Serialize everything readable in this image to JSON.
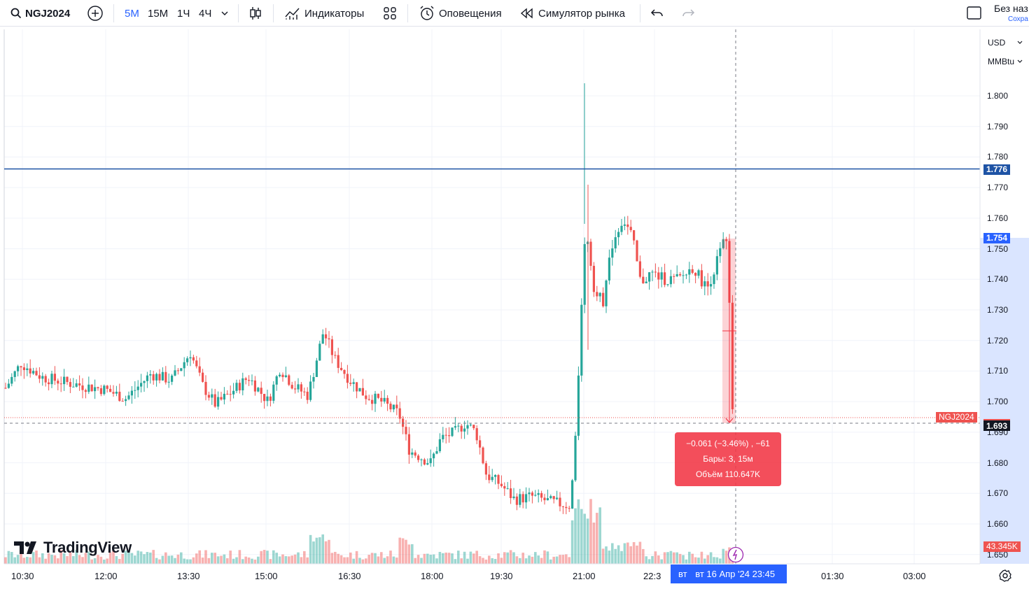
{
  "toolbar": {
    "symbol": "NGJ2024",
    "intervals": [
      {
        "label": "5М",
        "active": true
      },
      {
        "label": "15М",
        "active": false
      },
      {
        "label": "1Ч",
        "active": false
      },
      {
        "label": "4Ч",
        "active": false
      }
    ],
    "indicators_label": "Индикаторы",
    "alerts_label": "Оповещения",
    "replay_label": "Симулятор рынка",
    "layout_title": "Без наз",
    "layout_subtitle": "Сохра"
  },
  "price_scale": {
    "currency": "USD",
    "unit": "MMBtu",
    "labels": [
      "1.800",
      "1.790",
      "1.780",
      "1.770",
      "1.760",
      "1.750",
      "1.740",
      "1.730",
      "1.720",
      "1.710",
      "1.700",
      "1.690",
      "1.680",
      "1.670",
      "1.660",
      "1.650"
    ]
  },
  "time_scale": {
    "labels": [
      "10:30",
      "12:00",
      "13:30",
      "15:00",
      "16:30",
      "18:00",
      "19:30",
      "21:00",
      "22:3",
      "01:30",
      "03:00"
    ],
    "crosshair_prefix": "вт",
    "crosshair_label": "вт 16 Апр '24   23:45"
  },
  "tags": {
    "horizontal_line": "1.776",
    "range_top": "1.754",
    "symbol_name": "NGJ2024",
    "last_price": "1.693",
    "volume": "43.345K"
  },
  "measure_tooltip": {
    "line1": "−0.061 (−3.46%) , −61",
    "line2": "Бары: 3, 15м",
    "line3": "Объём 110.647K"
  },
  "branding": "TradingView",
  "colors": {
    "up": "#26a69a",
    "down": "#ef5350",
    "line": "#1e53a5",
    "accent": "#2962ff"
  }
}
